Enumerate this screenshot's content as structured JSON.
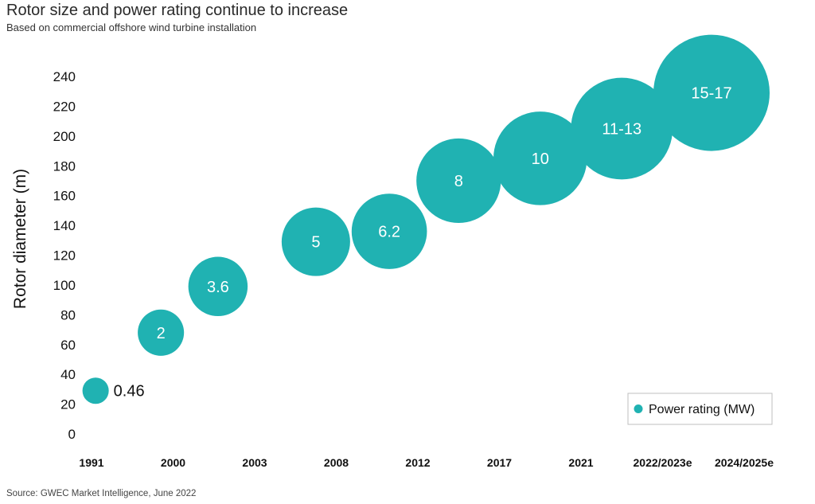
{
  "chart_data": {
    "type": "bubble",
    "title": "Rotor size and power rating continue to increase",
    "subtitle": "Based on commercial offshore wind turbine installation",
    "source": "Source: GWEC Market Intelligence, June 2022",
    "ylabel": "Rotor diameter (m)",
    "xlabel": "",
    "ylim": [
      0,
      240
    ],
    "yticks": [
      0,
      20,
      40,
      60,
      80,
      100,
      120,
      140,
      160,
      180,
      200,
      220,
      240
    ],
    "categories": [
      "1991",
      "2000",
      "2003",
      "2008",
      "2012",
      "2017",
      "2021",
      "2022/2023e",
      "2024/2025e"
    ],
    "series": [
      {
        "name": "Power rating (MW)",
        "color": "#20b2b2",
        "points": [
          {
            "x": 0.05,
            "y": 29,
            "label": "0.46",
            "mw": 0.46,
            "label_outside": true
          },
          {
            "x": 0.85,
            "y": 68,
            "label": "2",
            "mw": 2
          },
          {
            "x": 1.55,
            "y": 99,
            "label": "3.6",
            "mw": 3.6
          },
          {
            "x": 2.75,
            "y": 129,
            "label": "5",
            "mw": 5
          },
          {
            "x": 3.65,
            "y": 136,
            "label": "6.2",
            "mw": 6.2
          },
          {
            "x": 4.5,
            "y": 170,
            "label": "8",
            "mw": 8
          },
          {
            "x": 5.5,
            "y": 185,
            "label": "10",
            "mw": 10
          },
          {
            "x": 6.5,
            "y": 205,
            "label": "11-13",
            "mw": 12
          },
          {
            "x": 7.6,
            "y": 229,
            "label": "15-17",
            "mw": 16
          }
        ]
      }
    ],
    "legend": {
      "label": "Power rating (MW)",
      "position": "bottom-right"
    }
  }
}
